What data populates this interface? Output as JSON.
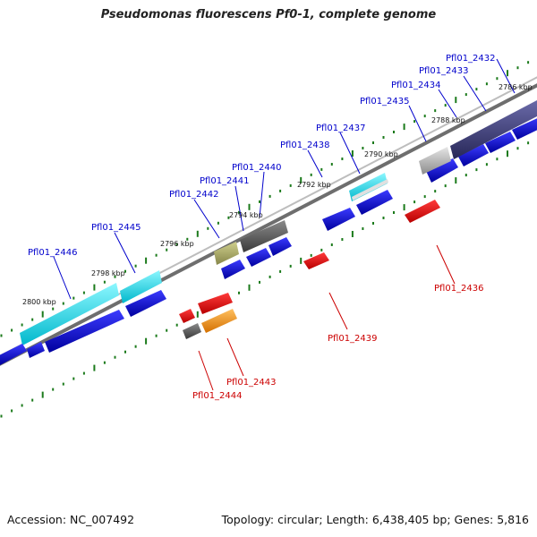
{
  "title": "Pseudomonas fluorescens Pf0-1, complete genome",
  "footer": {
    "accession": "Accession: NC_007492",
    "summary": "Topology: circular; Length: 6,438,405 bp; Genes: 5,816"
  },
  "colors": {
    "backbone": "#9a9a9a",
    "cds_blue": "#0a0ad8",
    "forward_label": "#0000cc",
    "reverse_label": "#cc0000",
    "reverse_red": "#ee0000",
    "rrna_cyan": "#22e3ef",
    "grey": "#5a5a5a",
    "light_grey": "#b8b8b8",
    "slate": "#43437a",
    "olive": "#a9a860",
    "orange": "#f5930f",
    "tick_green": "#1b7a1b"
  },
  "kbp_labels": [
    "2786 kbp",
    "2788 kbp",
    "2790 kbp",
    "2792 kbp",
    "2794 kbp",
    "2796 kbp",
    "2798 kbp",
    "2800 kbp"
  ],
  "forward_labels": [
    "Pfl01_2432",
    "Pfl01_2433",
    "Pfl01_2434",
    "Pfl01_2435",
    "Pfl01_2437",
    "Pfl01_2438",
    "Pfl01_2440",
    "Pfl01_2441",
    "Pfl01_2442",
    "Pfl01_2445",
    "Pfl01_2446"
  ],
  "reverse_labels": [
    "Pfl01_2436",
    "Pfl01_2439",
    "Pfl01_2443",
    "Pfl01_2444"
  ]
}
